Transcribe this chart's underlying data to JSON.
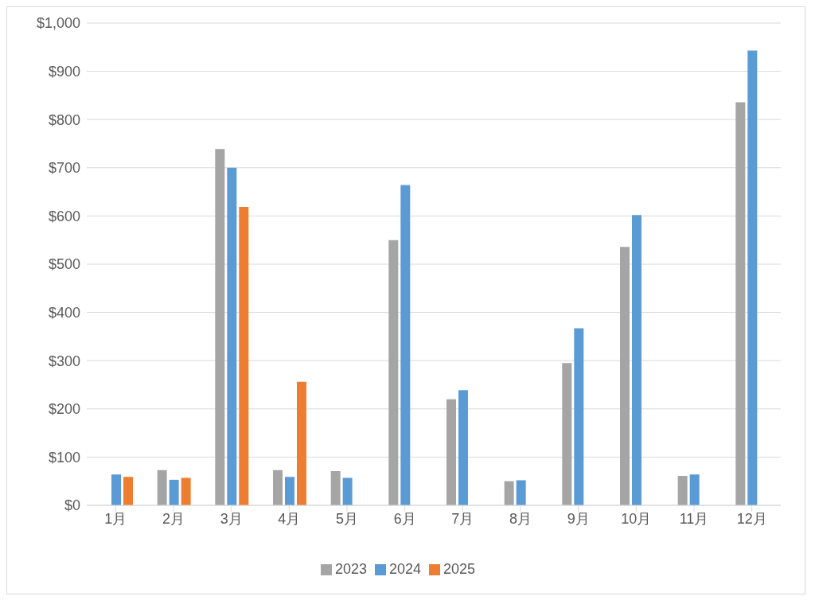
{
  "chart_data": {
    "type": "bar",
    "categories": [
      "1月",
      "2月",
      "3月",
      "4月",
      "5月",
      "6月",
      "7月",
      "8月",
      "9月",
      "10月",
      "11月",
      "12月"
    ],
    "series": [
      {
        "name": "2023",
        "color": "#a5a5a5",
        "values": [
          null,
          73,
          739,
          73,
          71,
          550,
          220,
          50,
          295,
          536,
          61,
          836
        ]
      },
      {
        "name": "2024",
        "color": "#5b9bd5",
        "values": [
          64,
          53,
          700,
          59,
          57,
          664,
          239,
          52,
          367,
          602,
          64,
          943
        ]
      },
      {
        "name": "2025",
        "color": "#ed7d31",
        "values": [
          59,
          57,
          619,
          256,
          null,
          null,
          null,
          null,
          null,
          null,
          null,
          null
        ]
      }
    ],
    "ylim": [
      0,
      1000
    ],
    "yticks": [
      {
        "value": 0,
        "label": "$0"
      },
      {
        "value": 100,
        "label": "$100"
      },
      {
        "value": 200,
        "label": "$200"
      },
      {
        "value": 300,
        "label": "$300"
      },
      {
        "value": 400,
        "label": "$400"
      },
      {
        "value": 500,
        "label": "$500"
      },
      {
        "value": 600,
        "label": "$600"
      },
      {
        "value": 700,
        "label": "$700"
      },
      {
        "value": 800,
        "label": "$800"
      },
      {
        "value": 900,
        "label": "$900"
      },
      {
        "value": 1000,
        "label": "$1,000"
      }
    ],
    "grid": "y",
    "legend": "bottom"
  }
}
